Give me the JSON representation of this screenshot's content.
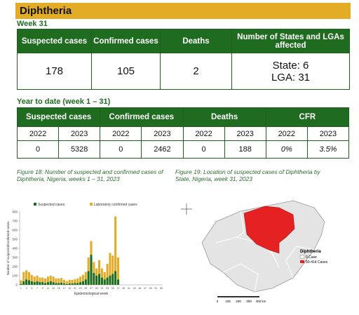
{
  "header": {
    "title": "Diphtheria"
  },
  "week": {
    "title": "Week 31",
    "headers": [
      "Suspected cases",
      "Confirmed cases",
      "Deaths",
      "Number of States and LGAs affected"
    ],
    "values": [
      178,
      105,
      2
    ],
    "affected": [
      "State: 6",
      "LGA: 31"
    ]
  },
  "ytd": {
    "title": "Year to date (week 1 – 31)",
    "groups": [
      "Suspected cases",
      "Confirmed cases",
      "Deaths",
      "CFR"
    ],
    "years": [
      2022,
      2023,
      2022,
      2023,
      2022,
      2023,
      2022,
      2023
    ],
    "values": [
      0,
      5328,
      0,
      2462,
      0,
      188,
      "0%",
      "3.5%"
    ]
  },
  "chart_data": {
    "type": "bar",
    "stacked": true,
    "title": "Figure 18: Number of suspected and confirmed cases of Diphtheria, Nigeria, weeks 1 – 31, 2023",
    "x_label": "Epidemiological week",
    "y_label": "Number of suspected/confirmed cases",
    "categories": [
      1,
      null,
      3,
      null,
      5,
      null,
      7,
      null,
      9,
      null,
      11,
      null,
      13,
      null,
      15,
      null,
      17,
      null,
      19,
      null,
      21,
      null,
      23,
      null,
      25,
      null,
      27,
      null,
      29,
      null,
      31,
      null,
      33,
      null,
      35,
      null,
      37,
      null,
      39,
      null,
      41,
      null,
      43,
      null,
      45,
      null,
      47,
      null,
      49,
      null,
      51,
      null,
      53
    ],
    "series": [
      {
        "name": "Suspected cases",
        "color": "#1e6b1e",
        "values": [
          10,
          40,
          60,
          50,
          40,
          30,
          40,
          30,
          30,
          20,
          30,
          40,
          30,
          20,
          20,
          25,
          15,
          10,
          15,
          15,
          20,
          20,
          30,
          40,
          60,
          150,
          330,
          130,
          100,
          120,
          80,
          60,
          80,
          100,
          120,
          150,
          60,
          null,
          null,
          null,
          null,
          null,
          null,
          null,
          null,
          null,
          null,
          null,
          null,
          null,
          null,
          null,
          null
        ]
      },
      {
        "name": "Laboratory confirmed cases",
        "color": "#e2ac26",
        "values": [
          40,
          100,
          100,
          90,
          70,
          60,
          60,
          50,
          50,
          50,
          60,
          60,
          60,
          50,
          50,
          50,
          40,
          30,
          40,
          40,
          40,
          50,
          60,
          70,
          80,
          150,
          150,
          120,
          80,
          150,
          100,
          80,
          150,
          250,
          200,
          600,
          240,
          null,
          null,
          null,
          null,
          null,
          null,
          null,
          null,
          null,
          null,
          null,
          null,
          null,
          null,
          null,
          null
        ]
      }
    ],
    "ylim": [
      0,
      800
    ],
    "yticks": [
      0,
      100,
      200,
      300,
      400,
      500,
      600,
      700,
      800
    ]
  },
  "map": {
    "caption": "Figure 19: Location of suspected cases of Diphtheria by State, Nigeria, week 31, 2023",
    "legend_title": "Diphtheria",
    "legend_items": [
      "0 Case",
      "50-414 Cases"
    ],
    "scale": [
      "0",
      "100",
      "200",
      "300",
      "400 km"
    ]
  }
}
